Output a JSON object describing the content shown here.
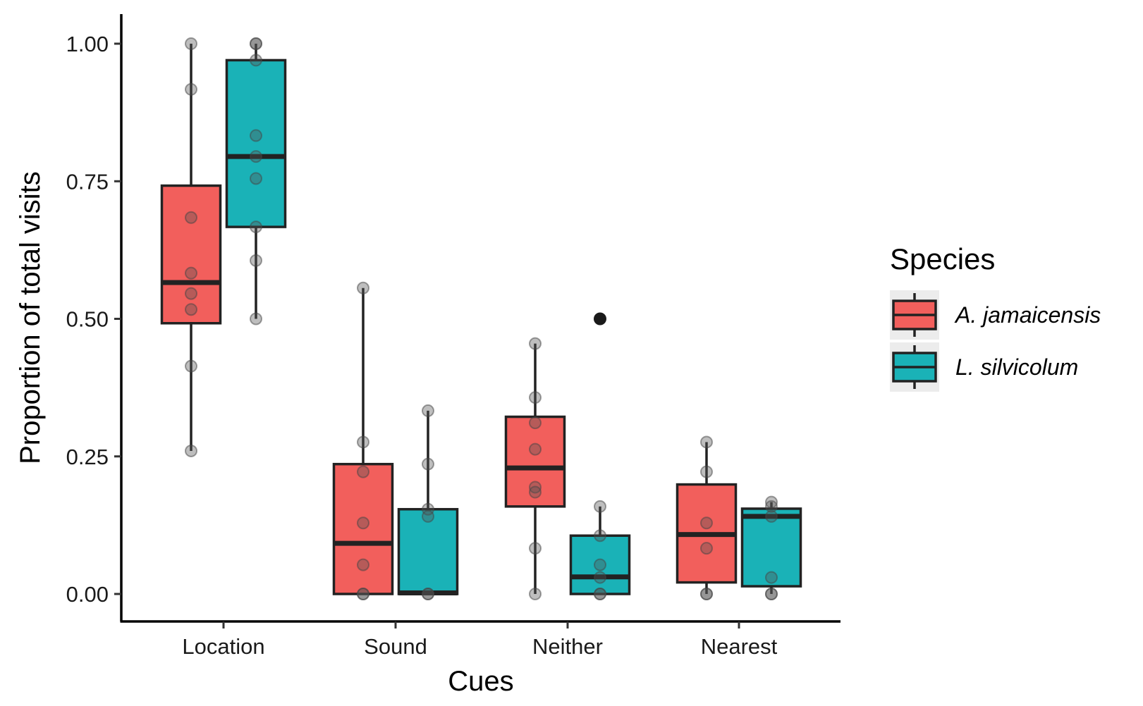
{
  "chart_data": {
    "type": "boxplot",
    "xlabel": "Cues",
    "ylabel": "Proportion of total visits",
    "categories": [
      "Location",
      "Sound",
      "Neither",
      "Nearest"
    ],
    "ylim": [
      -0.05,
      1.05
    ],
    "yticks": [
      0,
      0.25,
      0.5,
      0.75,
      1.0
    ],
    "ytick_labels": [
      "0.00",
      "0.25",
      "0.50",
      "0.75",
      "1.00"
    ],
    "grid": false,
    "legend": {
      "title": "Species",
      "placement": "right",
      "entries": [
        "A. jamaicensis",
        "L. silvicolum"
      ]
    },
    "colors": {
      "A. jamaicensis": "#f25f5c",
      "L. silvicolum": "#1ab2b7",
      "box_line": "#222222",
      "points": "#888888"
    },
    "series": [
      {
        "name": "A. jamaicensis",
        "boxes": [
          {
            "category": "Location",
            "min": 0.26,
            "q1": 0.492,
            "median": 0.566,
            "q3": 0.742,
            "max": 1.0,
            "outliers": [],
            "points": [
              1.0,
              0.917,
              0.684,
              0.583,
              0.546,
              0.517,
              0.414,
              0.26
            ]
          },
          {
            "category": "Sound",
            "min": 0.0,
            "q1": 0.0,
            "median": 0.092,
            "q3": 0.236,
            "max": 0.556,
            "outliers": [],
            "points": [
              0.556,
              0.276,
              0.222,
              0.129,
              0.053,
              0.0,
              0.0
            ]
          },
          {
            "category": "Neither",
            "min": 0.0,
            "q1": 0.159,
            "median": 0.229,
            "q3": 0.322,
            "max": 0.455,
            "outliers": [],
            "points": [
              0.455,
              0.357,
              0.311,
              0.263,
              0.194,
              0.185,
              0.083,
              0.0
            ]
          },
          {
            "category": "Nearest",
            "min": 0.0,
            "q1": 0.021,
            "median": 0.108,
            "q3": 0.199,
            "max": 0.276,
            "outliers": [],
            "points": [
              0.276,
              0.222,
              0.129,
              0.083,
              0.0,
              0.0
            ]
          }
        ]
      },
      {
        "name": "L. silvicolum",
        "boxes": [
          {
            "category": "Location",
            "min": 0.5,
            "q1": 0.667,
            "median": 0.795,
            "q3": 0.97,
            "max": 1.0,
            "outliers": [],
            "points": [
              1.0,
              1.0,
              0.97,
              0.833,
              0.795,
              0.755,
              0.667,
              0.606,
              0.5
            ]
          },
          {
            "category": "Sound",
            "min": 0.0,
            "q1": 0.0,
            "median": 0.002,
            "q3": 0.154,
            "max": 0.333,
            "outliers": [],
            "points": [
              0.333,
              0.236,
              0.154,
              0.141,
              0.0,
              0.0
            ]
          },
          {
            "category": "Neither",
            "min": 0.0,
            "q1": 0.0,
            "median": 0.031,
            "q3": 0.106,
            "max": 0.159,
            "outliers": [
              0.5
            ],
            "points": [
              0.159,
              0.106,
              0.053,
              0.03,
              0.0,
              0.0
            ]
          },
          {
            "category": "Nearest",
            "min": 0.0,
            "q1": 0.014,
            "median": 0.141,
            "q3": 0.155,
            "max": 0.167,
            "outliers": [],
            "points": [
              0.167,
              0.159,
              0.141,
              0.03,
              0.0,
              0.0
            ]
          }
        ]
      }
    ]
  }
}
